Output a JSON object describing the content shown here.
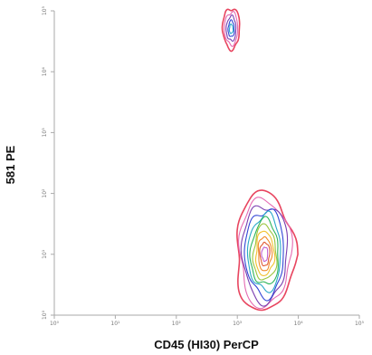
{
  "chart_data": {
    "type": "contour",
    "xlabel": "CD45 (HI30) PerCP",
    "ylabel": "581 PE",
    "xscale": "log",
    "yscale": "log",
    "xlim": [
      1,
      100000
    ],
    "ylim": [
      1,
      100000
    ],
    "x_ticks": [
      {
        "v": 1,
        "label": "10⁰"
      },
      {
        "v": 10,
        "label": "10¹"
      },
      {
        "v": 100,
        "label": "10²"
      },
      {
        "v": 1000,
        "label": "10³"
      },
      {
        "v": 10000,
        "label": "10⁴"
      },
      {
        "v": 100000,
        "label": "10⁵"
      }
    ],
    "y_ticks": [
      {
        "v": 1,
        "label": "10⁰"
      },
      {
        "v": 10,
        "label": "10¹"
      },
      {
        "v": 100,
        "label": "10²"
      },
      {
        "v": 1000,
        "label": "10³"
      },
      {
        "v": 10000,
        "label": "10⁴"
      },
      {
        "v": 100000,
        "label": "10⁵"
      }
    ],
    "grid": false,
    "contour_colors": [
      "#e8455f",
      "#e56ab2",
      "#7a3fb0",
      "#3347d6",
      "#2aa8c9",
      "#2eb55a",
      "#9bc53d",
      "#f2c12e",
      "#f08a2c",
      "#e05a33",
      "#c060d0"
    ],
    "populations": [
      {
        "name": "population-major",
        "center_log": [
          3.45,
          1.0
        ],
        "levels": [
          {
            "rx": 0.48,
            "ry": 1.02
          },
          {
            "rx": 0.42,
            "ry": 0.92
          },
          {
            "rx": 0.37,
            "ry": 0.83
          },
          {
            "rx": 0.32,
            "ry": 0.74
          },
          {
            "rx": 0.27,
            "ry": 0.65
          },
          {
            "rx": 0.23,
            "ry": 0.56
          },
          {
            "rx": 0.19,
            "ry": 0.47
          },
          {
            "rx": 0.15,
            "ry": 0.38
          },
          {
            "rx": 0.11,
            "ry": 0.29
          },
          {
            "rx": 0.08,
            "ry": 0.2
          },
          {
            "rx": 0.05,
            "ry": 0.12
          }
        ]
      },
      {
        "name": "population-minor",
        "center_log": [
          2.9,
          4.7
        ],
        "levels": [
          {
            "rx": 0.14,
            "ry": 0.35
          },
          {
            "rx": 0.11,
            "ry": 0.28
          },
          {
            "rx": 0.08,
            "ry": 0.21
          },
          {
            "rx": 0.05,
            "ry": 0.14
          },
          {
            "rx": 0.03,
            "ry": 0.08
          }
        ]
      }
    ]
  }
}
